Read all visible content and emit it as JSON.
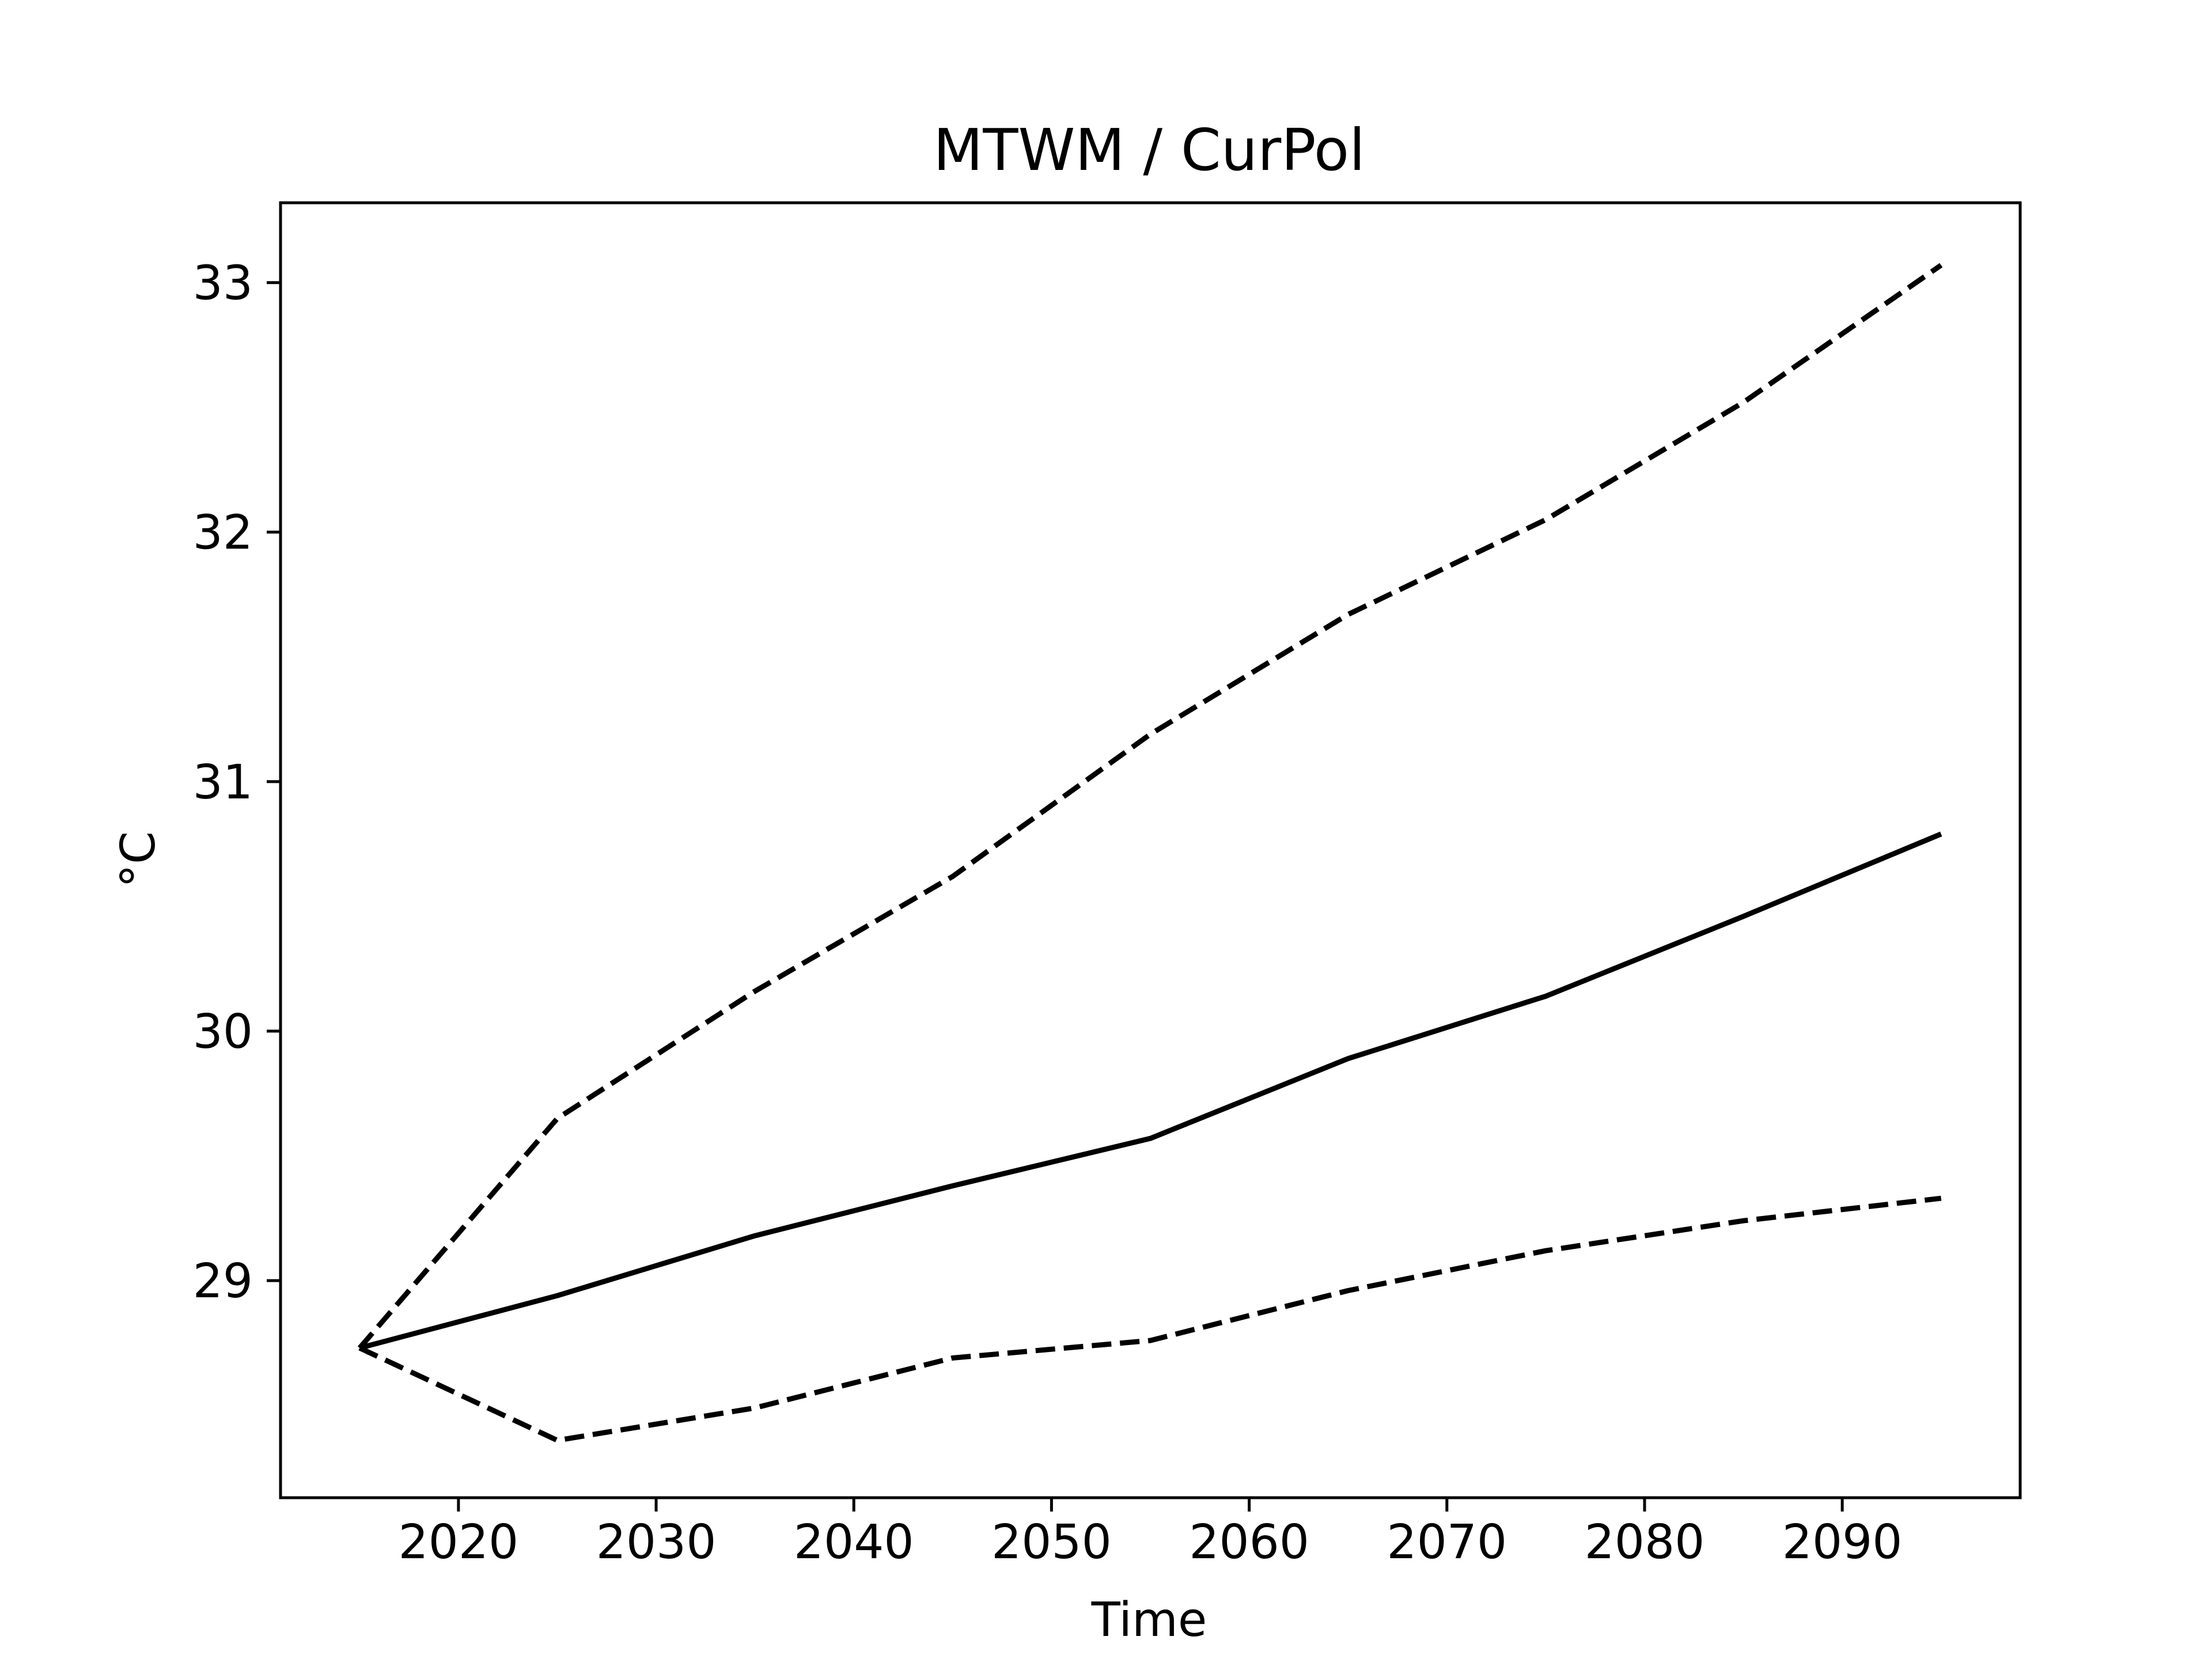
{
  "chart_data": {
    "type": "line",
    "title": "MTWM / CurPol",
    "xlabel": "Time",
    "ylabel": "°C",
    "xlim": [
      2011,
      2099
    ],
    "ylim": [
      28.13,
      33.32
    ],
    "xticks": [
      2020,
      2030,
      2040,
      2050,
      2060,
      2070,
      2080,
      2090
    ],
    "xtick_labels": [
      "2020",
      "2030",
      "2040",
      "2050",
      "2060",
      "2070",
      "2080",
      "2090"
    ],
    "yticks": [
      29,
      30,
      31,
      32,
      33
    ],
    "ytick_labels": [
      "29",
      "30",
      "31",
      "32",
      "33"
    ],
    "grid": false,
    "legend": "none",
    "x": [
      2015,
      2025,
      2035,
      2045,
      2055,
      2065,
      2075,
      2085,
      2095
    ],
    "series": [
      {
        "style": "solid",
        "color": "#000000",
        "values": [
          28.73,
          28.94,
          29.18,
          29.38,
          29.57,
          29.89,
          30.14,
          30.46,
          30.79
        ]
      },
      {
        "style": "dashed",
        "color": "#000000",
        "values": [
          28.73,
          29.65,
          30.16,
          30.62,
          31.19,
          31.67,
          32.05,
          32.52,
          33.07
        ]
      },
      {
        "style": "dashed",
        "color": "#000000",
        "values": [
          28.73,
          28.36,
          28.49,
          28.69,
          28.76,
          28.96,
          29.12,
          29.24,
          29.33
        ]
      }
    ]
  }
}
